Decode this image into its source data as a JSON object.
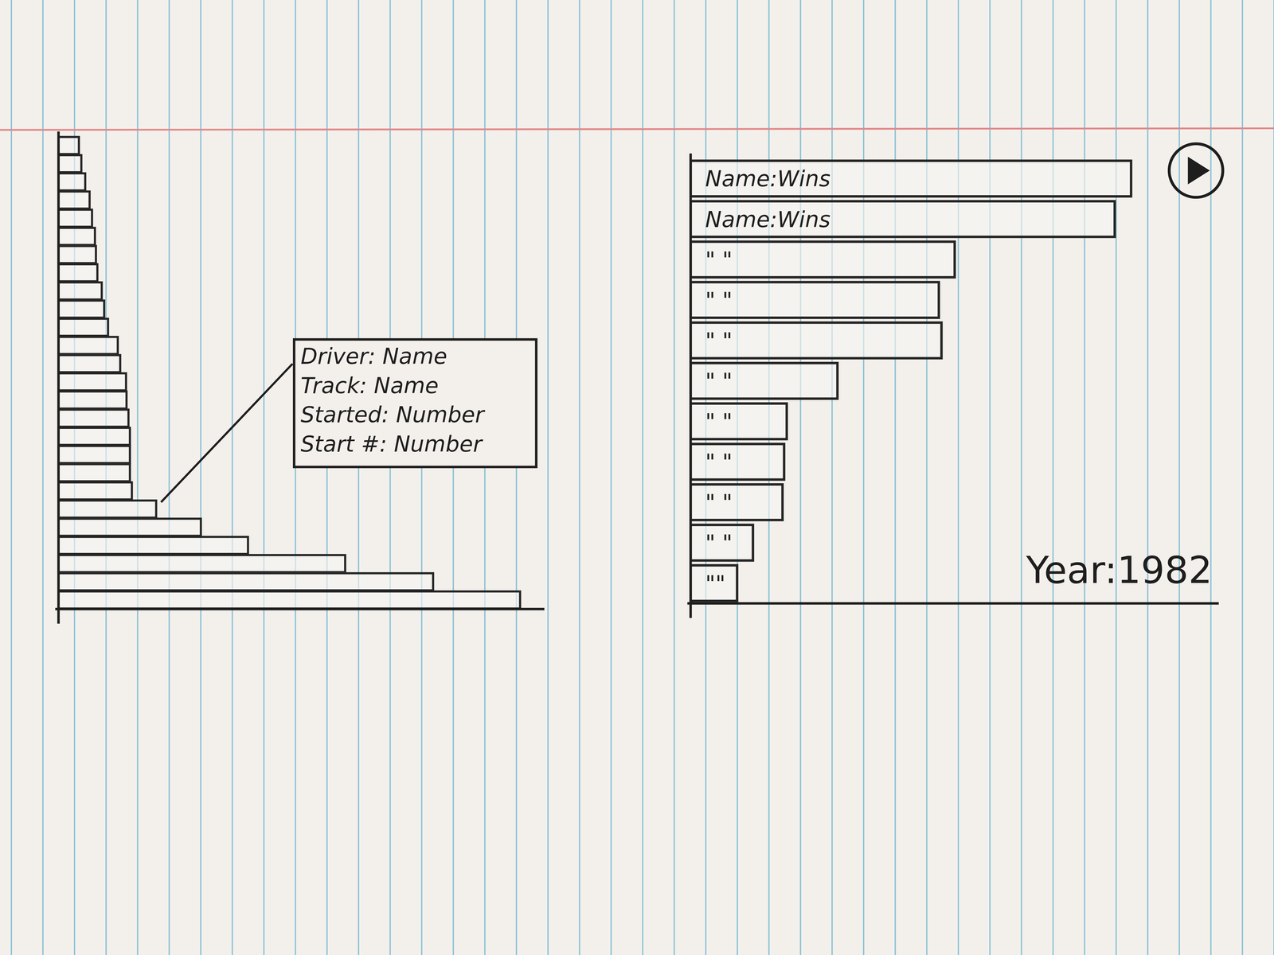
{
  "chart_data": [
    {
      "type": "bar",
      "orientation": "horizontal",
      "categories": [
        null,
        null,
        null,
        null,
        null,
        null,
        null,
        null,
        null,
        null,
        null,
        null,
        null,
        null,
        null,
        null,
        null,
        null,
        null,
        null,
        null,
        null,
        null,
        null,
        null,
        null
      ],
      "values": [
        4.2,
        4.7,
        5.5,
        6.4,
        6.9,
        7.5,
        7.7,
        8.0,
        8.9,
        9.4,
        10.2,
        12.2,
        12.7,
        13.9,
        14.0,
        14.4,
        14.7,
        14.7,
        14.7,
        15.1,
        20.1,
        29.3,
        39.0,
        59.0,
        77.1,
        95.0
      ],
      "xlim": [
        0,
        100
      ],
      "tick_labels": false,
      "color": "#262626",
      "annotations": [
        "Driver: Name",
        "Track: Name",
        "Started: Number",
        "Start #: Number"
      ]
    },
    {
      "type": "bar",
      "orientation": "horizontal",
      "categories": [
        "Name:Wins",
        "Name:Wins",
        "\" \"",
        "\" \"",
        "\" \"",
        "\" \"",
        "\" \"",
        "\" \"",
        "\" \"",
        "\" \"",
        "\"\""
      ],
      "values": [
        83.4,
        80.3,
        50.0,
        47.0,
        47.5,
        27.8,
        18.2,
        17.7,
        17.4,
        11.8,
        8.8
      ],
      "xlim": [
        0,
        100
      ],
      "tick_labels": false,
      "color": "#262626",
      "annotations": [
        "Year:1982"
      ]
    }
  ]
}
